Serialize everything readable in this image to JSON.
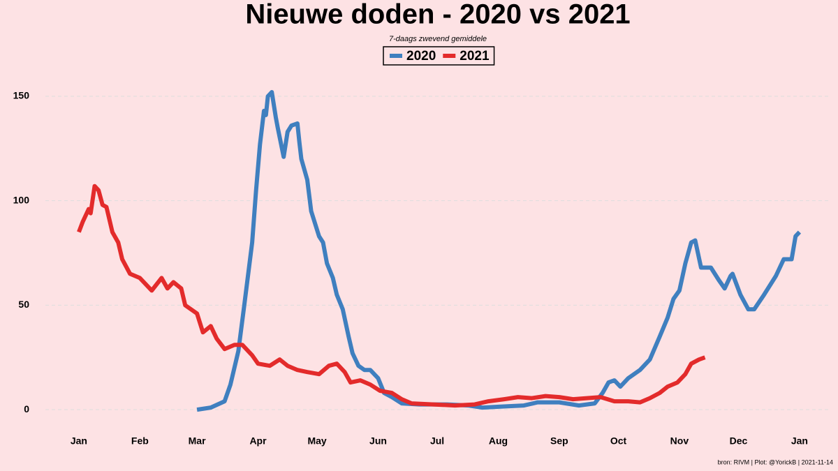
{
  "chart_data": {
    "type": "line",
    "title": "Nieuwe doden - 2020 vs 2021",
    "subtitle": "7-daags zwevend gemiddele",
    "caption": "bron: RIVM  | Plot: @YorickB |  2021-11-14",
    "xlim": [
      -17,
      382
    ],
    "ylim": [
      -9,
      156
    ],
    "xticks": [
      {
        "value": 0,
        "label": "Jan"
      },
      {
        "value": 31,
        "label": "Feb"
      },
      {
        "value": 60,
        "label": "Mar"
      },
      {
        "value": 91,
        "label": "Apr"
      },
      {
        "value": 121,
        "label": "May"
      },
      {
        "value": 152,
        "label": "Jun"
      },
      {
        "value": 182,
        "label": "Jul"
      },
      {
        "value": 213,
        "label": "Aug"
      },
      {
        "value": 244,
        "label": "Sep"
      },
      {
        "value": 274,
        "label": "Oct"
      },
      {
        "value": 305,
        "label": "Nov"
      },
      {
        "value": 335,
        "label": "Dec"
      },
      {
        "value": 366,
        "label": "Jan"
      }
    ],
    "yticks": [
      0,
      50,
      100,
      150
    ],
    "grid": true,
    "legend": "top",
    "series": [
      {
        "name": "2020",
        "color": "#3f7fbf",
        "x": [
          60,
          67,
          74,
          77,
          81,
          84,
          88,
          90,
          92,
          94,
          95,
          96,
          98,
          100,
          101,
          104,
          106,
          108,
          111,
          112,
          113,
          116,
          118,
          122,
          124,
          126,
          129,
          131,
          134,
          137,
          139,
          142,
          145,
          148,
          152,
          155,
          159,
          164,
          173,
          187,
          198,
          205,
          215,
          226,
          233,
          244,
          254,
          262,
          266,
          269,
          272,
          275,
          279,
          285,
          290,
          295,
          299,
          302,
          305,
          308,
          311,
          313,
          316,
          321,
          325,
          328,
          331,
          332,
          336,
          340,
          343,
          348,
          354,
          358,
          362,
          364,
          366
        ],
        "values": [
          0,
          1,
          4,
          12,
          28,
          50,
          80,
          105,
          127,
          143,
          141,
          150,
          152,
          140,
          135,
          121,
          133,
          136,
          137,
          128,
          120,
          110,
          95,
          83,
          80,
          70,
          63,
          55,
          48,
          35,
          27,
          21,
          19,
          19,
          15,
          8,
          6,
          3,
          2.5,
          2.5,
          2,
          1,
          1.5,
          2,
          3.5,
          3.5,
          2,
          3,
          8,
          13,
          14,
          11,
          15,
          19,
          24,
          35,
          44,
          53,
          57,
          70,
          80,
          81,
          68,
          68,
          62,
          58,
          64,
          65,
          55,
          48,
          48,
          55,
          64,
          72,
          72,
          83,
          85
        ]
      },
      {
        "name": "2021",
        "color": "#e32b2b",
        "x": [
          0,
          2,
          5,
          6,
          8,
          10,
          12,
          14,
          17,
          20,
          22,
          26,
          31,
          37,
          42,
          45,
          48,
          52,
          54,
          60,
          63,
          67,
          70,
          74,
          79,
          83,
          88,
          91,
          97,
          102,
          106,
          111,
          116,
          122,
          127,
          131,
          135,
          138,
          143,
          148,
          153,
          159,
          164,
          169,
          180,
          191,
          201,
          208,
          216,
          223,
          230,
          237,
          244,
          251,
          258,
          265,
          272,
          279,
          285,
          290,
          295,
          299,
          304,
          308,
          311,
          315,
          318
        ],
        "values": [
          85,
          90,
          96,
          94,
          107,
          105,
          98,
          97,
          85,
          80,
          72,
          65,
          63,
          57,
          63,
          58,
          61,
          58,
          50,
          46,
          37,
          40,
          34,
          29,
          31,
          31,
          26,
          22,
          21,
          24,
          21,
          19,
          18,
          17,
          21,
          22,
          18,
          13,
          14,
          12,
          9,
          8,
          5,
          3,
          2.5,
          2,
          2.5,
          4,
          5,
          6,
          5.5,
          6.5,
          6,
          5,
          5.5,
          6,
          4,
          4,
          3.5,
          5.5,
          8,
          11,
          13,
          17,
          22,
          24,
          25
        ]
      }
    ]
  }
}
